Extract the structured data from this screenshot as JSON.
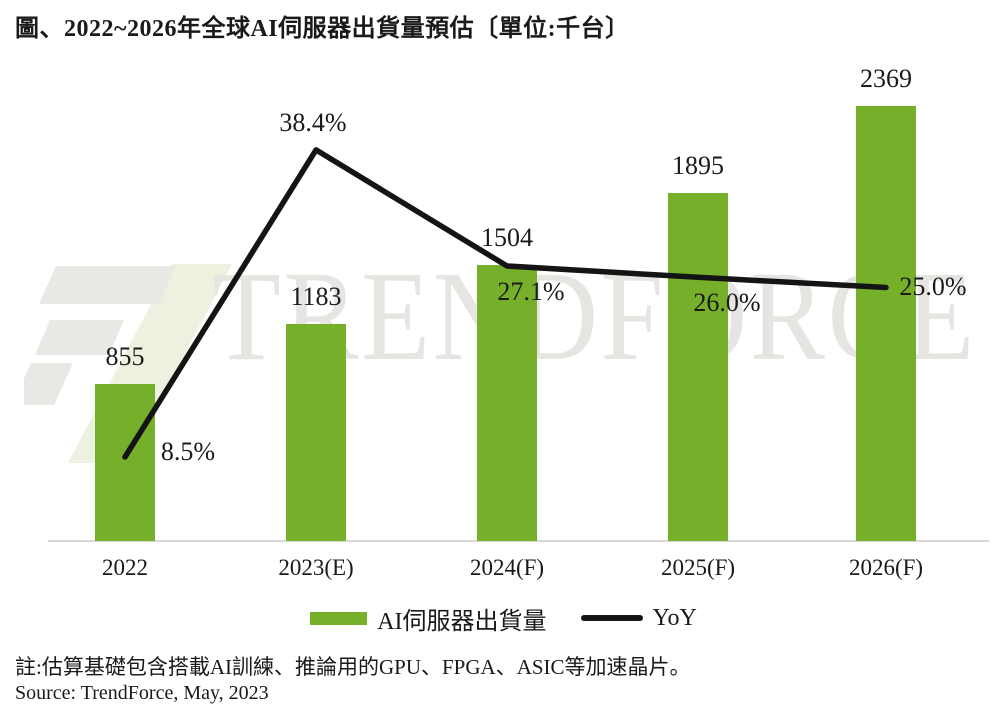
{
  "title": "圖、2022~2026年全球AI伺服器出貨量預估〔單位:千台〕",
  "watermark_text": "TRENDFORCE",
  "chart_data": {
    "type": "bar",
    "subtype": "bar-with-line-overlay",
    "title": "2022~2026年全球AI伺服器出貨量預估",
    "unit": "千台",
    "categories": [
      "2022",
      "2023(E)",
      "2024(F)",
      "2025(F)",
      "2026(F)"
    ],
    "series": [
      {
        "name": "AI伺服器出貨量",
        "type": "bar",
        "values": [
          855,
          1183,
          1504,
          1895,
          2369
        ],
        "value_labels": [
          "855",
          "1183",
          "1504",
          "1895",
          "2369"
        ],
        "color": "#76B02A"
      },
      {
        "name": "YoY",
        "type": "line",
        "values": [
          8.5,
          38.4,
          27.1,
          26.0,
          25.0
        ],
        "value_labels": [
          "8.5%",
          "38.4%",
          "27.1%",
          "26.0%",
          "25.0%"
        ],
        "color": "#141414"
      }
    ],
    "grid": false,
    "y_axis_visible": false,
    "legend_position": "bottom"
  },
  "note": "註:估算基礎包含搭載AI訓練、推論用的GPU、FPGA、ASIC等加速晶片。",
  "source": "Source: TrendForce, May, 2023",
  "colors": {
    "bar_green": "#76B02A",
    "yoy_line": "#141414",
    "axis_line": "#D8D8D8",
    "text": "#1A1A1A",
    "watermark_text_gray": "#E7E5E1",
    "watermark_logo_gray": "#E9E8E4",
    "watermark_logo_green": "#EDF2E0"
  }
}
